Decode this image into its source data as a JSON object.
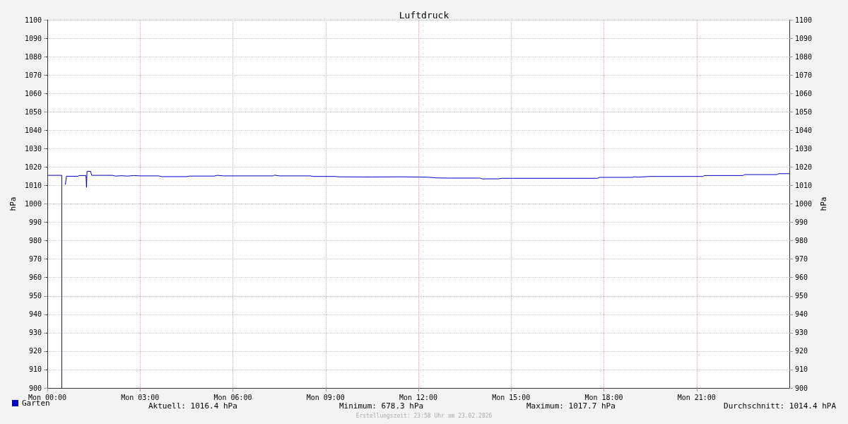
{
  "chart_data": {
    "type": "line",
    "title": "Luftdruck",
    "ylabel": "hPa",
    "y2label": "hPa",
    "xlim": [
      "2026-02-23T00:00",
      "2026-02-24T00:00"
    ],
    "xticks": [
      {
        "value": "2026-02-23T00:00",
        "label": "Mon 00:00"
      },
      {
        "value": "2026-02-23T03:00",
        "label": "Mon 03:00"
      },
      {
        "value": "2026-02-23T06:00",
        "label": "Mon 06:00"
      },
      {
        "value": "2026-02-23T09:00",
        "label": "Mon 09:00"
      },
      {
        "value": "2026-02-23T12:00",
        "label": "Mon 12:00"
      },
      {
        "value": "2026-02-23T15:00",
        "label": "Mon 15:00"
      },
      {
        "value": "2026-02-23T18:00",
        "label": "Mon 18:00"
      },
      {
        "value": "2026-02-23T21:00",
        "label": "Mon 21:00"
      }
    ],
    "ylim": [
      900,
      1100
    ],
    "yticks": [
      900,
      910,
      920,
      930,
      940,
      950,
      960,
      970,
      980,
      990,
      1000,
      1010,
      1020,
      1030,
      1040,
      1050,
      1060,
      1070,
      1080,
      1090,
      1100
    ],
    "y2lim": [
      900,
      1100
    ],
    "y2ticks": [
      900,
      910,
      920,
      930,
      940,
      950,
      960,
      970,
      980,
      990,
      1000,
      1010,
      1020,
      1030,
      1040,
      1050,
      1060,
      1070,
      1080,
      1090,
      1100
    ],
    "grid": true,
    "legend": "bottom left",
    "marker": "none",
    "line_style": "solid",
    "series": [
      {
        "name": "Garten",
        "color": "#0000cc",
        "x": [
          "2026-02-23T00:00",
          "2026-02-23T00:28",
          "2026-02-23T00:28",
          "2026-02-23T00:30",
          "2026-02-23T00:35",
          "2026-02-23T00:37",
          "2026-02-23T01:00",
          "2026-02-23T01:01",
          "2026-02-23T01:15",
          "2026-02-23T01:16",
          "2026-02-23T01:17",
          "2026-02-23T01:24",
          "2026-02-23T01:26",
          "2026-02-23T02:06",
          "2026-02-23T02:12",
          "2026-02-23T02:24",
          "2026-02-23T02:36",
          "2026-02-23T02:48",
          "2026-02-23T03:00",
          "2026-02-23T03:36",
          "2026-02-23T03:42",
          "2026-02-23T04:30",
          "2026-02-23T04:36",
          "2026-02-23T05:24",
          "2026-02-23T05:30",
          "2026-02-23T05:42",
          "2026-02-23T07:18",
          "2026-02-23T07:21",
          "2026-02-23T07:30",
          "2026-02-23T08:30",
          "2026-02-23T08:36",
          "2026-02-23T09:18",
          "2026-02-23T09:24",
          "2026-02-23T10:12",
          "2026-02-23T10:30",
          "2026-02-23T11:24",
          "2026-02-23T12:18",
          "2026-02-23T12:36",
          "2026-02-23T13:00",
          "2026-02-23T14:00",
          "2026-02-23T14:03",
          "2026-02-23T14:36",
          "2026-02-23T14:42",
          "2026-02-23T17:48",
          "2026-02-23T17:51",
          "2026-02-23T18:54",
          "2026-02-23T19:00",
          "2026-02-23T19:06",
          "2026-02-23T19:30",
          "2026-02-23T21:12",
          "2026-02-23T21:15",
          "2026-02-23T22:30",
          "2026-02-23T22:33",
          "2026-02-23T23:36",
          "2026-02-23T23:39",
          "2026-02-24T00:00"
        ],
        "values": [
          1015.5,
          1015.5,
          900,
          null,
          1010.5,
          1015,
          1015,
          1015.4,
          1015.4,
          1009,
          1017.7,
          1017.7,
          1015.5,
          1015.5,
          1015.1,
          1015.3,
          1015.1,
          1015.4,
          1015.2,
          1015.2,
          1014.8,
          1014.8,
          1015.1,
          1015.1,
          1015.5,
          1015.2,
          1015.2,
          1015.6,
          1015.2,
          1015.2,
          1014.9,
          1014.9,
          1014.7,
          1014.6,
          1014.6,
          1014.7,
          1014.5,
          1014.1,
          1014.0,
          1014.0,
          1013.6,
          1013.6,
          1013.9,
          1013.9,
          1014.4,
          1014.4,
          1014.7,
          1014.5,
          1014.9,
          1014.9,
          1015.4,
          1015.4,
          1015.9,
          1015.9,
          1016.4,
          1016.4
        ]
      }
    ],
    "annotations": [
      "Aktuell: 1016.4 hPa",
      "Minimum: 678.3 hPa",
      "Maximum: 1017.7 hPa",
      "Durchschnitt: 1014.4 hPA",
      "Erstellungszeit: 23:58 Uhr am 23.02.2026"
    ]
  }
}
